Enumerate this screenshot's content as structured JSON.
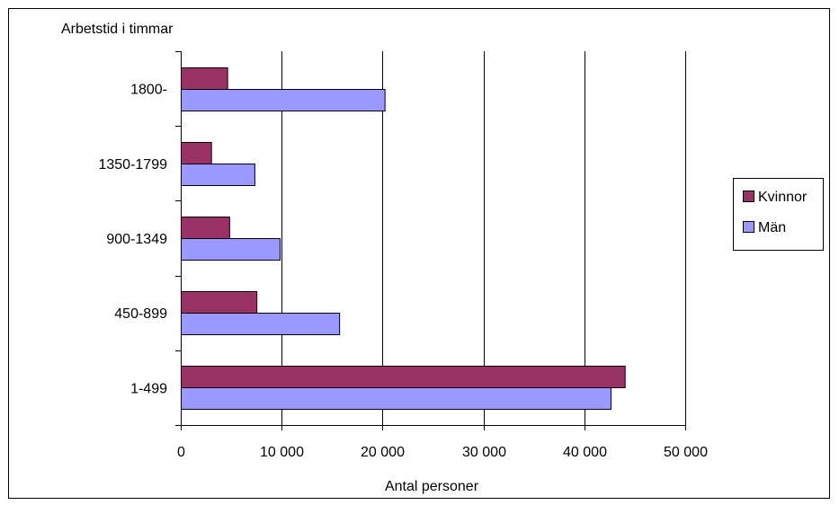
{
  "chart_data": {
    "type": "bar",
    "orientation": "horizontal",
    "ylabel": "Arbetstid i timmar",
    "xlabel": "Antal personer",
    "categories": [
      "1800-",
      "1350-1799",
      "900-1349",
      "450-899",
      "1-499"
    ],
    "series": [
      {
        "name": "Kvinnor",
        "color": "#993366",
        "values": [
          4600,
          3000,
          4800,
          7500,
          44000
        ]
      },
      {
        "name": "Män",
        "color": "#9999ff",
        "values": [
          20200,
          7300,
          9800,
          15700,
          42600
        ]
      }
    ],
    "xlim": [
      0,
      50000
    ],
    "xticks": [
      0,
      10000,
      20000,
      30000,
      40000,
      50000
    ],
    "xtick_labels": [
      "0",
      "10 000",
      "20 000",
      "30 000",
      "40 000",
      "50 000"
    ],
    "grid": "vertical",
    "legend_position": "right"
  }
}
